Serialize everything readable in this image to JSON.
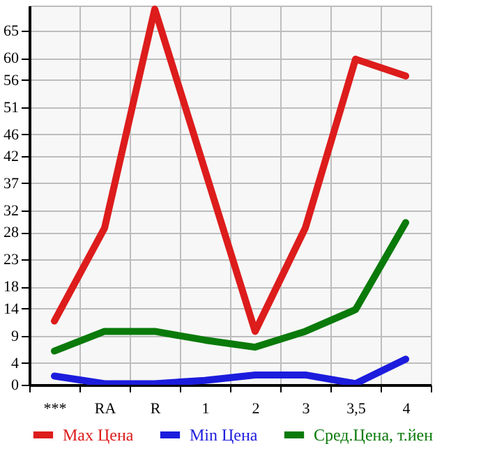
{
  "chart_data": {
    "type": "line",
    "categories": [
      "***",
      "RA",
      "R",
      "1",
      "2",
      "3",
      "3,5",
      "4"
    ],
    "series": [
      {
        "name": "Max Цена",
        "color": "#dd1c1c",
        "values": [
          11.7,
          28.8,
          69,
          39.4,
          9.8,
          28.8,
          59.8,
          56.7
        ]
      },
      {
        "name": "Min Цена",
        "color": "#1c1cdd",
        "values": [
          1.6,
          0.2,
          0.2,
          0.8,
          1.8,
          1.8,
          0.2,
          4.7
        ]
      },
      {
        "name": "Сред.Цена, т.йен",
        "color": "#0a7a0a",
        "values": [
          6.2,
          9.8,
          9.8,
          8.2,
          6.9,
          9.8,
          13.8,
          29.8
        ]
      }
    ],
    "ylim": [
      0,
      69.64
    ],
    "yticks": [
      0,
      4,
      9,
      14,
      18,
      23,
      28,
      32,
      37,
      42,
      46,
      51,
      56,
      60,
      65
    ],
    "grid": true,
    "legend": "bottom",
    "marker": "none",
    "line_style": "solid"
  }
}
